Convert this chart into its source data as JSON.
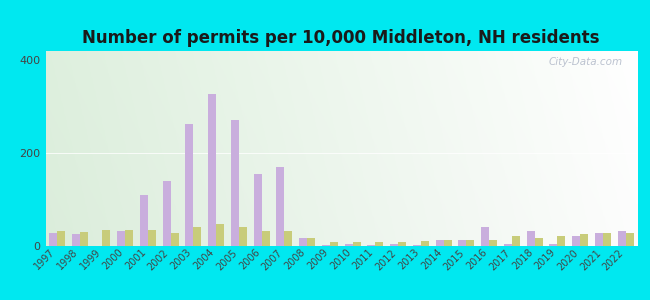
{
  "title": "Number of permits per 10,000 Middleton, NH residents",
  "years": [
    1997,
    1998,
    1999,
    2000,
    2001,
    2002,
    2003,
    2004,
    2005,
    2006,
    2007,
    2008,
    2009,
    2010,
    2011,
    2012,
    2013,
    2014,
    2015,
    2016,
    2017,
    2018,
    2019,
    2020,
    2021,
    2022
  ],
  "middleton": [
    28,
    25,
    0,
    32,
    110,
    140,
    262,
    328,
    272,
    155,
    170,
    18,
    2,
    5,
    3,
    5,
    2,
    12,
    12,
    42,
    5,
    32,
    5,
    22,
    28,
    32
  ],
  "nh_avg": [
    32,
    30,
    35,
    35,
    35,
    28,
    42,
    48,
    42,
    32,
    32,
    18,
    8,
    8,
    8,
    8,
    10,
    12,
    12,
    12,
    22,
    18,
    22,
    25,
    28,
    28
  ],
  "middleton_color": "#c9aedd",
  "nh_color": "#c8cc7a",
  "outer_bg": "#00e8f0",
  "plot_bg_left": "#d8edd8",
  "plot_bg_right": "#f0f5e8",
  "ylim": [
    0,
    420
  ],
  "yticks": [
    0,
    200,
    400
  ],
  "bar_width": 0.35,
  "watermark": "City-Data.com",
  "title_fontsize": 12,
  "tick_fontsize": 7,
  "legend_fontsize": 9
}
